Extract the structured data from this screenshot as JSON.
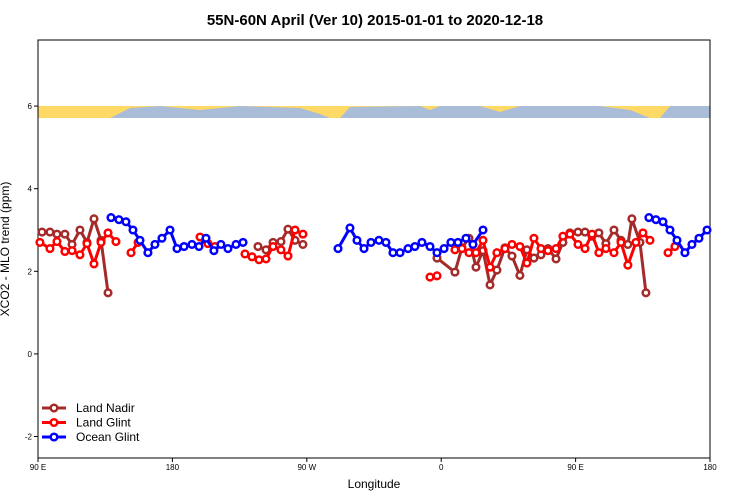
{
  "chart_data": {
    "type": "line",
    "title": "55N-60N April (Ver 10)   2015-01-01 to 2020-12-18",
    "x_label": "Longitude",
    "y_label": "XCO2 - MLO trend (ppm)",
    "xlim": [
      90,
      540
    ],
    "ylim": [
      -2.52,
      7.6
    ],
    "xticks": [
      {
        "value": 90,
        "label": "90 E"
      },
      {
        "value": 180,
        "label": "180"
      },
      {
        "value": 270,
        "label": "90 W"
      },
      {
        "value": 360,
        "label": "0"
      },
      {
        "value": 450,
        "label": "90 E"
      },
      {
        "value": 540,
        "label": "180"
      }
    ],
    "yticks": [
      -2,
      0,
      2,
      4,
      6
    ],
    "legend": "bottom-left",
    "series": [
      {
        "name": "Land Nadir",
        "color": "#a52a2a",
        "x": [
          92.7,
          98,
          102.7,
          108,
          112.8,
          118.1,
          122.8,
          127.5,
          132.2,
          136.9,
          190,
          237.3,
          242.7,
          247.4,
          252.7,
          257.4,
          262.1,
          267.4,
          310,
          357.2,
          369.2,
          373.9,
          378.6,
          383.3,
          388,
          392.7,
          397.3,
          402.7,
          407.4,
          412.7,
          417.4,
          422.1,
          426.8,
          431.5,
          436.9,
          441.5,
          446.2,
          451.6,
          456.3,
          461,
          465.6,
          470.3,
          475.7,
          480.4,
          485,
          487.7,
          493.1,
          497.1
        ],
        "values": [
          2.95,
          2.95,
          2.9,
          2.9,
          2.65,
          3.0,
          2.7,
          3.27,
          2.75,
          1.48,
          null,
          2.6,
          2.52,
          2.7,
          2.72,
          3.02,
          2.75,
          2.65,
          null,
          2.32,
          1.98,
          2.57,
          2.8,
          2.1,
          2.5,
          1.67,
          2.03,
          2.57,
          2.37,
          1.9,
          2.52,
          2.32,
          2.4,
          2.55,
          2.3,
          2.7,
          2.93,
          2.95,
          2.95,
          2.85,
          2.93,
          2.67,
          3.0,
          2.75,
          2.65,
          3.27,
          2.7,
          1.48
        ]
      },
      {
        "name": "Land Glint",
        "color": "#ff0000",
        "x": [
          91.3,
          98,
          102.7,
          108,
          112.8,
          118.1,
          122.8,
          127.5,
          132.2,
          136.9,
          142.2,
          148,
          152.3,
          157,
          180,
          198.5,
          203.8,
          208.5,
          220,
          228.6,
          233.3,
          238,
          242.7,
          247.4,
          252.7,
          257.4,
          262.1,
          267.4,
          310,
          352.5,
          357.2,
          363,
          369.2,
          373.9,
          378.6,
          383.3,
          388,
          392.7,
          397.3,
          402.7,
          407.4,
          412.7,
          417.4,
          422.1,
          426.8,
          431.5,
          436.9,
          441.5,
          446.2,
          451.6,
          456.3,
          461,
          465.6,
          470.3,
          475.7,
          480.4,
          485,
          490.4,
          495.1,
          499.8,
          505,
          511.9,
          516.5
        ],
        "values": [
          2.7,
          2.55,
          2.72,
          2.48,
          2.5,
          2.4,
          2.67,
          2.18,
          2.7,
          2.93,
          2.72,
          null,
          2.45,
          2.7,
          null,
          2.83,
          2.67,
          2.6,
          null,
          2.42,
          2.35,
          2.28,
          2.3,
          2.6,
          2.52,
          2.37,
          3.0,
          2.9,
          null,
          1.86,
          1.89,
          null,
          2.52,
          2.55,
          2.45,
          2.45,
          2.75,
          2.1,
          2.45,
          2.55,
          2.65,
          2.6,
          2.2,
          2.8,
          2.55,
          2.5,
          2.55,
          2.85,
          2.9,
          2.65,
          2.55,
          2.9,
          2.45,
          2.55,
          2.45,
          2.7,
          2.15,
          2.7,
          2.93,
          2.75,
          null,
          2.45,
          2.6
        ]
      },
      {
        "name": "Ocean Glint",
        "color": "#0000ff",
        "x": [
          138.9,
          144.2,
          148.9,
          153.6,
          158.3,
          163.6,
          168.3,
          173,
          178.4,
          183.1,
          187.8,
          193.1,
          197.8,
          202.5,
          207.8,
          212.5,
          217.2,
          222.6,
          227.3,
          258.7,
          290.9,
          298.9,
          303.6,
          308.3,
          313,
          318.3,
          323,
          327.7,
          332.4,
          337.8,
          342.4,
          347.1,
          352.5,
          357.2,
          361.9,
          366.5,
          371.2,
          376.6,
          381.3,
          388,
          439.5,
          499.1,
          503.8,
          508.5,
          513.2,
          517.9,
          523.2,
          527.9,
          532.6,
          538
        ],
        "values": [
          3.3,
          3.25,
          3.2,
          3.0,
          2.75,
          2.45,
          2.65,
          2.8,
          3.0,
          2.55,
          2.6,
          2.65,
          2.6,
          2.8,
          2.5,
          2.65,
          2.55,
          2.65,
          2.7,
          null,
          2.55,
          3.05,
          2.75,
          2.55,
          2.7,
          2.75,
          2.7,
          2.45,
          2.45,
          2.55,
          2.6,
          2.7,
          2.6,
          2.45,
          2.55,
          2.7,
          2.7,
          2.8,
          2.65,
          3.0,
          null,
          3.3,
          3.25,
          3.2,
          3.0,
          2.75,
          2.45,
          2.65,
          2.8,
          3.0
        ]
      }
    ]
  }
}
